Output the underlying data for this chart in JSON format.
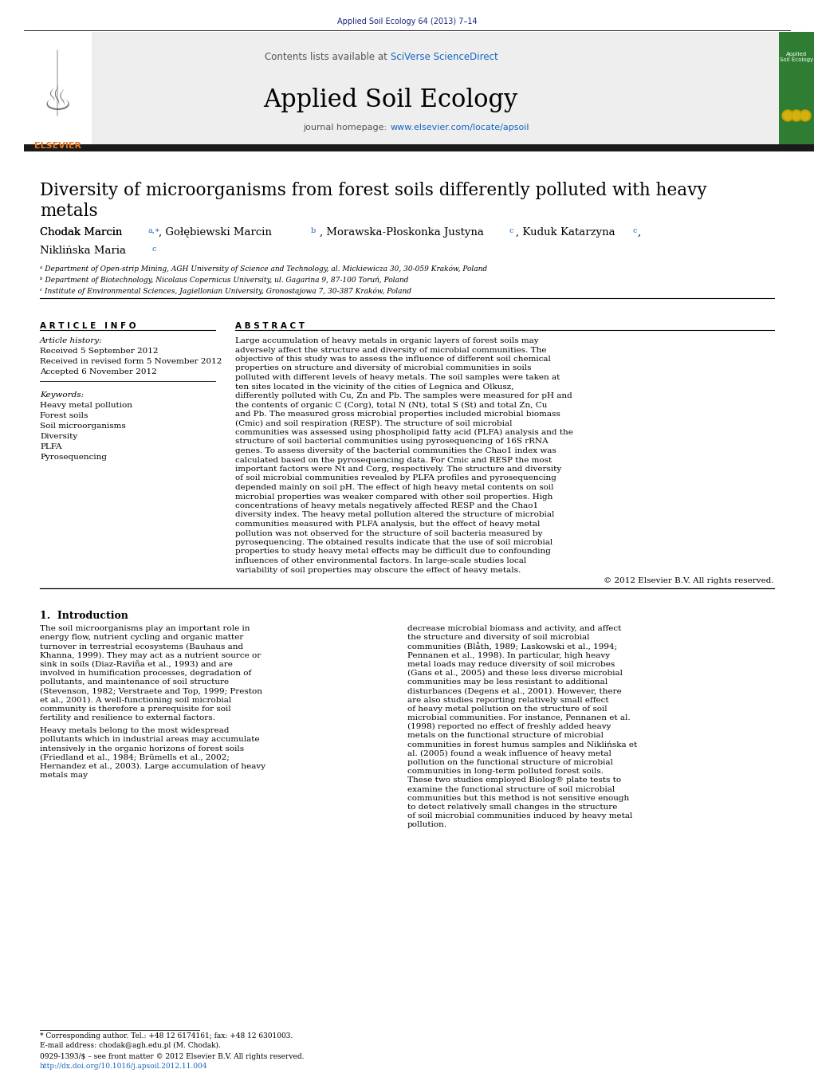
{
  "bg_color": "#ffffff",
  "header_journal_ref": "Applied Soil Ecology 64 (2013) 7–14",
  "header_journal_ref_color": "#1a237e",
  "contents_text": "Contents lists available at ",
  "sciverse_text": "SciVerse ScienceDirect",
  "sciverse_color": "#1565c0",
  "journal_title": "Applied Soil Ecology",
  "journal_homepage_prefix": "journal homepage: ",
  "journal_homepage_url": "www.elsevier.com/locate/apsoil",
  "journal_homepage_url_color": "#1565c0",
  "header_bar_color": "#1a1a1a",
  "elsevier_color": "#e87722",
  "paper_title_line1": "Diversity of microorganisms from forest soils differently polluted with heavy",
  "paper_title_line2": "metals",
  "author_main": "Chodak Marcin",
  "author_sup1": "a,∗",
  "author_golab": ", Gołębiewski Marcin",
  "author_sup2": "b",
  "author_mora": ", Morawska-Płoskonka Justyna",
  "author_sup3": "c",
  "author_kuduk": ", Kuduk Katarzyna",
  "author_sup4": "c",
  "author_nikl": "Niklińska Maria",
  "author_sup5": "c",
  "affiliation_a": "ᵃ Department of Open-strip Mining, AGH University of Science and Technology, al. Mickiewicza 30, 30-059 Kraków, Poland",
  "affiliation_b": "ᵇ Department of Biotechnology, Nicolaus Copernicus University, ul. Gagarina 9, 87-100 Toruń, Poland",
  "affiliation_c": "ᶜ Institute of Environmental Sciences, Jagiellonian University, Gronostajowa 7, 30-387 Kraków, Poland",
  "article_info_header": "A R T I C L E   I N F O",
  "abstract_header": "A B S T R A C T",
  "article_history_label": "Article history:",
  "received": "Received 5 September 2012",
  "received_revised": "Received in revised form 5 November 2012",
  "accepted": "Accepted 6 November 2012",
  "keywords_label": "Keywords:",
  "keywords": [
    "Heavy metal pollution",
    "Forest soils",
    "Soil microorganisms",
    "Diversity",
    "PLFA",
    "Pyrosequencing"
  ],
  "abstract_text": "Large accumulation of heavy metals in organic layers of forest soils may adversely affect the structure and diversity of microbial communities. The objective of this study was to assess the influence of different soil chemical properties on structure and diversity of microbial communities in soils polluted with different levels of heavy metals. The soil samples were taken at ten sites located in the vicinity of the cities of Legnica and Olkusz, differently polluted with Cu, Zn and Pb. The samples were measured for pH and the contents of organic C (Corg), total N (Nt), total S (St) and total Zn, Cu and Pb. The measured gross microbial properties included microbial biomass (Cmic) and soil respiration (RESP). The structure of soil microbial communities was assessed using phospholipid fatty acid (PLFA) analysis and the structure of soil bacterial communities using pyrosequencing of 16S rRNA genes. To assess diversity of the bacterial communities the Chao1 index was calculated based on the pyrosequencing data. For Cmic and RESP the most important factors were Nt and Corg, respectively. The structure and diversity of soil microbial communities revealed by PLFA profiles and pyrosequencing depended mainly on soil pH. The effect of high heavy metal contents on soil microbial properties was weaker compared with other soil properties. High concentrations of heavy metals negatively affected RESP and the Chao1 diversity index. The heavy metal pollution altered the structure of microbial communities measured with PLFA analysis, but the effect of heavy metal pollution was not observed for the structure of soil bacteria measured by pyrosequencing. The obtained results indicate that the use of soil microbial properties to study heavy metal effects may be difficult due to confounding influences of other environmental factors. In large-scale studies local variability of soil properties may obscure the effect of heavy metals.",
  "copyright": "© 2012 Elsevier B.V. All rights reserved.",
  "intro_header": "1.  Introduction",
  "intro_p1": "   The soil microorganisms play an important role in energy flow, nutrient cycling and organic matter turnover in terrestrial ecosystems (Bauhaus and Khanna, 1999). They may act as a nutrient source or sink in soils (Diaz-Raviña et al., 1993) and are involved in humification processes, degradation of pollutants, and maintenance of soil structure (Stevenson, 1982; Verstraete and Top, 1999; Preston et al., 2001). A well-functioning soil microbial community is therefore a prerequisite for soil fertility and resilience to external factors.",
  "intro_p2": "   Heavy metals belong to the most widespread pollutants which in industrial areas may accumulate intensively in the organic horizons of forest soils (Friedland et al., 1984; Brümells et al., 2002; Hernandez et al., 2003). Large accumulation of heavy metals may",
  "intro_col2": "decrease microbial biomass and activity, and affect the structure and diversity of soil microbial communities (Blåth, 1989; Laskowski et al., 1994; Pennanen et al., 1998). In particular, high heavy metal loads may reduce diversity of soil microbes (Gans et al., 2005) and these less diverse microbial communities may be less resistant to additional disturbances (Degens et al., 2001). However, there are also studies reporting relatively small effect of heavy metal pollution on the structure of soil microbial communities. For instance, Pennanen et al. (1998) reported no effect of freshly added heavy metals on the functional structure of microbial communities in forest humus samples and Niklińska et al. (2005) found a weak influence of heavy metal pollution on the functional structure of microbial communities in long-term polluted forest soils. These two studies employed Biolog® plate tests to examine the functional structure of soil microbial communities but this method is not sensitive enough to detect relatively small changes in the structure of soil microbial communities induced by heavy metal pollution.",
  "footnote_corresponding": "* Corresponding author. Tel.: +48 12 6174161; fax: +48 12 6301003.",
  "footnote_email": "E-mail address: chodak@agh.edu.pl (M. Chodak).",
  "footnote_issn": "0929-1393/$ – see front matter © 2012 Elsevier B.V. All rights reserved.",
  "footnote_doi": "http://dx.doi.org/10.1016/j.apsoil.2012.11.004",
  "green_color": "#2e7d32",
  "gray_banner_color": "#eeeeee",
  "sup_color": "#1565c0"
}
